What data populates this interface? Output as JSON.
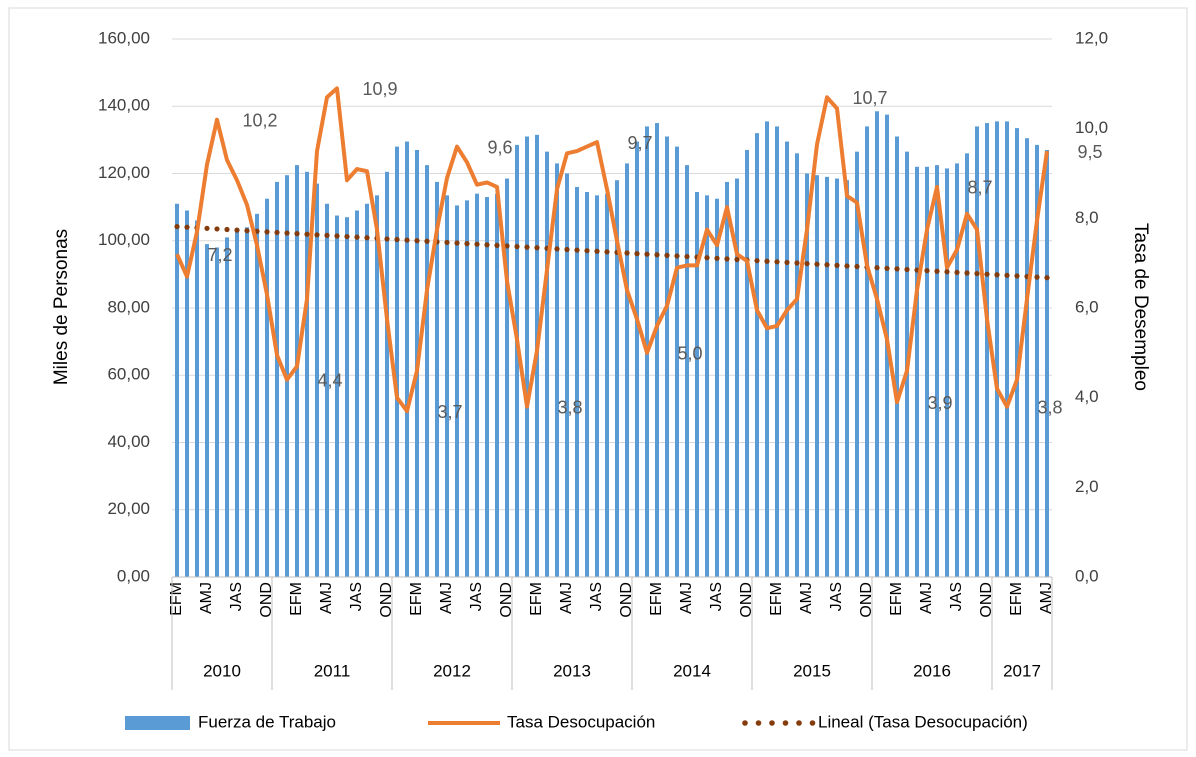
{
  "chart_data": {
    "type": "bar-line",
    "y_label": "Miles de Personas",
    "y2_label": "Tasa de Desempleo",
    "categories": [
      "EFM",
      null,
      null,
      "AMJ",
      null,
      null,
      "JAS",
      null,
      null,
      "OND",
      null,
      null,
      "EFM",
      null,
      null,
      "AMJ",
      null,
      null,
      "JAS",
      null,
      null,
      "OND",
      null,
      null,
      "EFM",
      null,
      null,
      "AMJ",
      null,
      null,
      "JAS",
      null,
      null,
      "OND",
      null,
      null,
      "EFM",
      null,
      null,
      "AMJ",
      null,
      null,
      "JAS",
      null,
      null,
      "OND",
      null,
      null,
      "EFM",
      null,
      null,
      "AMJ",
      null,
      null,
      "JAS",
      null,
      null,
      "OND",
      null,
      null,
      "EFM",
      null,
      null,
      "AMJ",
      null,
      null,
      "JAS",
      null,
      null,
      "OND",
      null,
      null,
      "EFM",
      null,
      null,
      "AMJ",
      null,
      null,
      "JAS",
      null,
      null,
      "OND",
      null,
      null,
      "EFM",
      null,
      null,
      "AMJ"
    ],
    "years": [
      "2010",
      "2011",
      "2012",
      "2013",
      "2014",
      "2015",
      "2016",
      "2017"
    ],
    "series": [
      {
        "name": "Fuerza de Trabajo",
        "type": "bar",
        "color": "#5b9bd5",
        "values": [
          111,
          109,
          106,
          99,
          98,
          101,
          103,
          104,
          108,
          112.5,
          117.5,
          119.5,
          122.5,
          120.5,
          117,
          111,
          107.5,
          107,
          109,
          111,
          113.5,
          120.5,
          128,
          129.5,
          127,
          122.5,
          117.5,
          113.5,
          110.5,
          112,
          114,
          113,
          114,
          118.5,
          128.5,
          131,
          131.5,
          126.5,
          123,
          120,
          116,
          114.5,
          113.5,
          114,
          118,
          123,
          129.5,
          134,
          135,
          131,
          128,
          122.5,
          114.5,
          113.5,
          112.5,
          117.5,
          118.5,
          127,
          132,
          135.5,
          134,
          129.5,
          126,
          120,
          119.5,
          119,
          118.5,
          118,
          126.5,
          134,
          138.5,
          137.5,
          131,
          126.5,
          122,
          122,
          122.5,
          121.5,
          123,
          126,
          134,
          135,
          135.5,
          135.5,
          133.5,
          130.5,
          128.5,
          127
        ]
      },
      {
        "name": "Tasa Desocupación",
        "type": "line",
        "axis": "y2",
        "color": "#ed7d31",
        "values": [
          7.2,
          6.7,
          7.7,
          9.2,
          10.2,
          9.3,
          8.85,
          8.3,
          7.4,
          6.3,
          4.95,
          4.4,
          4.7,
          6.2,
          9.5,
          10.7,
          10.9,
          8.85,
          9.1,
          9.05,
          7.75,
          5.75,
          4.0,
          3.7,
          4.6,
          6.4,
          7.75,
          8.9,
          9.6,
          9.25,
          8.75,
          8.8,
          8.7,
          6.6,
          5.3,
          3.8,
          5.05,
          6.85,
          8.65,
          9.45,
          9.5,
          9.6,
          9.7,
          8.65,
          7.5,
          6.4,
          5.75,
          5.0,
          5.6,
          6.05,
          6.9,
          6.95,
          6.95,
          7.75,
          7.4,
          8.25,
          7.2,
          7.05,
          5.95,
          5.55,
          5.6,
          5.95,
          6.2,
          7.75,
          9.65,
          10.7,
          10.45,
          8.5,
          8.35,
          6.95,
          6.2,
          5.3,
          3.9,
          4.6,
          6.4,
          7.75,
          8.7,
          6.9,
          7.3,
          8.1,
          7.75,
          5.75,
          4.2,
          3.8,
          4.4,
          6.2,
          7.95,
          9.5
        ],
        "value_labels": [
          "7,2",
          null,
          null,
          null,
          "10,2",
          null,
          null,
          null,
          null,
          null,
          null,
          "4,4",
          null,
          null,
          null,
          null,
          "10,9",
          null,
          null,
          null,
          null,
          null,
          null,
          "3,7",
          null,
          null,
          null,
          null,
          "9,6",
          null,
          null,
          null,
          null,
          null,
          null,
          "3,8",
          null,
          null,
          null,
          null,
          null,
          null,
          "9,7",
          null,
          null,
          null,
          null,
          "5,0",
          null,
          null,
          null,
          null,
          null,
          null,
          null,
          null,
          null,
          null,
          null,
          null,
          null,
          null,
          null,
          null,
          null,
          "10,7",
          null,
          null,
          null,
          null,
          null,
          null,
          "3,9",
          null,
          null,
          null,
          "8,7",
          null,
          null,
          null,
          null,
          null,
          null,
          "3,8",
          null,
          null,
          null,
          "9,5"
        ],
        "trendline": {
          "name": "Lineal (Tasa Desocupación)",
          "type": "linear",
          "color": "#843c0c"
        }
      }
    ],
    "ylim": [
      0,
      160
    ],
    "yticks": [
      {
        "value": 0,
        "label": "0,00"
      },
      {
        "value": 20,
        "label": "20,00"
      },
      {
        "value": 40,
        "label": "40,00"
      },
      {
        "value": 60,
        "label": "60,00"
      },
      {
        "value": 80,
        "label": "80,00"
      },
      {
        "value": 100,
        "label": "100,00"
      },
      {
        "value": 120,
        "label": "120,00"
      },
      {
        "value": 140,
        "label": "140,00"
      },
      {
        "value": 160,
        "label": "160,00"
      }
    ],
    "y2lim": [
      0,
      12
    ],
    "y2ticks": [
      {
        "value": 0,
        "label": "0,0"
      },
      {
        "value": 2,
        "label": "2,0"
      },
      {
        "value": 4,
        "label": "4,0"
      },
      {
        "value": 6,
        "label": "6,0"
      },
      {
        "value": 8,
        "label": "8,0"
      },
      {
        "value": 10,
        "label": "10,0"
      },
      {
        "value": 12,
        "label": "12,0"
      }
    ],
    "grid": true,
    "legend": "bottom"
  }
}
